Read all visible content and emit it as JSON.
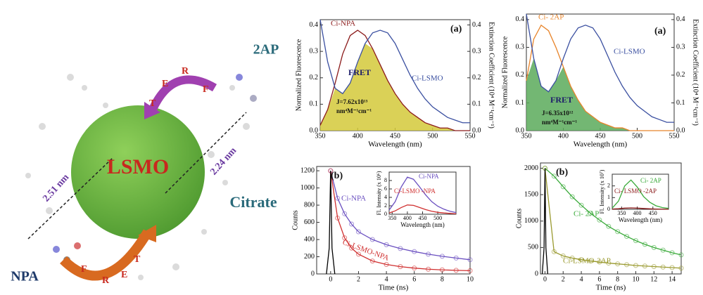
{
  "schematic": {
    "core": "LSMO",
    "ligand": "Citrate",
    "donors": [
      "2AP",
      "NPA"
    ],
    "distances": [
      "2.51 nm",
      "2.24 nm"
    ],
    "fret_top": [
      "T",
      "E",
      "R",
      "F"
    ],
    "fret_bottom": [
      "F",
      "R",
      "E",
      "T"
    ]
  },
  "chart_data": [
    {
      "type": "line",
      "xlabel": "Wavelength (nm)",
      "ylabel": "Normalized Fluorescence",
      "y2label": "Extinction Coefficient (10⁴ M⁻¹cm⁻¹)",
      "x": [
        350,
        360,
        370,
        380,
        390,
        400,
        410,
        420,
        430,
        440,
        450,
        460,
        470,
        480,
        490,
        500,
        510,
        520,
        530,
        540,
        550
      ],
      "series": [
        {
          "name": "Ci-NPA",
          "color": "#8b1a1a",
          "values": [
            0.02,
            0.08,
            0.18,
            0.29,
            0.36,
            0.38,
            0.36,
            0.31,
            0.25,
            0.19,
            0.14,
            0.1,
            0.07,
            0.05,
            0.03,
            0.02,
            0.01,
            0.01,
            0.0,
            0.0,
            0.0
          ]
        },
        {
          "name": "Ci-LSMO",
          "color": "#3a4fa0",
          "axis": "y2",
          "values": [
            0.42,
            0.26,
            0.16,
            0.14,
            0.18,
            0.26,
            0.33,
            0.37,
            0.38,
            0.37,
            0.33,
            0.27,
            0.21,
            0.16,
            0.12,
            0.09,
            0.07,
            0.05,
            0.04,
            0.03,
            0.03
          ]
        }
      ],
      "overlap_color": "#d4c93a",
      "xlim": [
        350,
        550
      ],
      "xticks": [
        350,
        400,
        450,
        500,
        550
      ],
      "ylim": [
        0,
        0.42
      ],
      "yticks": [
        {
          "value": 0,
          "label": "0.0"
        },
        0.1,
        0.2,
        0.3,
        0.4
      ],
      "y2lim": [
        0,
        0.42
      ],
      "y2ticks": [
        {
          "value": 0,
          "label": "0.0"
        },
        0.1,
        0.2,
        0.3,
        0.4
      ],
      "annotations": [
        "(a)",
        "FRET",
        "J=7.62x10¹³",
        "nm⁴M⁻¹cm⁻¹"
      ]
    },
    {
      "type": "line",
      "xlabel": "Wavelength (nm)",
      "ylabel": "Normalized Fluorescence",
      "y2label": "Extinction Coefficient (10⁴ M⁻¹cm⁻¹)",
      "x": [
        350,
        360,
        370,
        380,
        390,
        400,
        410,
        420,
        430,
        440,
        450,
        460,
        470,
        480,
        490,
        500,
        510,
        520,
        530,
        540,
        550
      ],
      "series": [
        {
          "name": "Ci- 2AP",
          "color": "#e8842a",
          "values": [
            0.18,
            0.33,
            0.38,
            0.36,
            0.3,
            0.23,
            0.16,
            0.11,
            0.07,
            0.05,
            0.03,
            0.02,
            0.01,
            0.01,
            0,
            0,
            0,
            0,
            0,
            0,
            0
          ]
        },
        {
          "name": "Ci-LSMO",
          "color": "#3a4fa0",
          "axis": "y2",
          "values": [
            0.42,
            0.26,
            0.16,
            0.14,
            0.18,
            0.26,
            0.33,
            0.37,
            0.38,
            0.37,
            0.33,
            0.27,
            0.21,
            0.16,
            0.12,
            0.09,
            0.07,
            0.05,
            0.04,
            0.03,
            0.03
          ]
        }
      ],
      "overlap_color": "#5aaa5a",
      "xlim": [
        350,
        550
      ],
      "xticks": [
        350,
        400,
        450,
        500,
        550
      ],
      "ylim": [
        0,
        0.42
      ],
      "yticks": [
        {
          "value": 0,
          "label": "0.0"
        },
        0.1,
        0.2,
        0.3,
        0.4
      ],
      "y2lim": [
        0,
        0.42
      ],
      "y2ticks": [
        {
          "value": 0,
          "label": "0.0"
        },
        0.1,
        0.2,
        0.3,
        0.4
      ],
      "annotations": [
        "(a)",
        "FRET",
        "J=6.35x10¹²",
        "nm⁴M⁻¹cm⁻¹"
      ]
    },
    {
      "type": "line",
      "xlabel": "Time (ns)",
      "ylabel": "Counts",
      "series": [
        {
          "name": "Ci-NPA",
          "color": "#6a4fc0",
          "markers": true,
          "x": [
            0,
            0.5,
            1,
            1.5,
            2,
            3,
            4,
            5,
            6,
            7,
            8,
            9,
            10
          ],
          "values": [
            1200,
            880,
            700,
            580,
            490,
            400,
            340,
            295,
            260,
            230,
            205,
            185,
            165
          ]
        },
        {
          "name": "Ci-LSMO-NPA",
          "color": "#d03030",
          "markers": true,
          "x": [
            0,
            0.5,
            1,
            1.5,
            2,
            3,
            4,
            5,
            6,
            7,
            8,
            9,
            10
          ],
          "values": [
            1200,
            650,
            420,
            300,
            230,
            150,
            110,
            85,
            68,
            55,
            47,
            42,
            38
          ]
        },
        {
          "color": "#000000",
          "x": [
            -0.3,
            -0.1,
            0,
            0.1,
            0.3
          ],
          "values": [
            0,
            300,
            1200,
            300,
            0
          ]
        }
      ],
      "xlim": [
        -1,
        10
      ],
      "xticks": [
        0,
        2,
        4,
        6,
        8,
        10
      ],
      "ylim": [
        0,
        1250
      ],
      "yticks": [
        0,
        200,
        400,
        600,
        800,
        1000,
        1200
      ],
      "annotations": [
        "(b)"
      ]
    },
    {
      "type": "line",
      "xlabel": "Wavelength (nm)",
      "ylabel": "Fl. Intensity (x 10⁶)",
      "x": [
        340,
        360,
        380,
        400,
        420,
        440,
        460,
        480,
        500,
        520,
        540,
        560
      ],
      "series": [
        {
          "name": "Ci-NPA",
          "color": "#6a4fc0",
          "values": [
            1,
            3,
            6.5,
            8.8,
            8.3,
            6.5,
            4.6,
            3,
            1.9,
            1.2,
            0.7,
            0.4
          ]
        },
        {
          "name": "Ci-LSMO -NPA",
          "color": "#d03030",
          "values": [
            0.3,
            0.8,
            1.6,
            2.2,
            2.1,
            1.6,
            1.1,
            0.7,
            0.45,
            0.3,
            0.2,
            0.1
          ]
        }
      ],
      "xlim": [
        340,
        560
      ],
      "xticks": [
        350,
        400,
        450,
        500
      ],
      "ylim": [
        0,
        10
      ],
      "yticks": [
        0,
        2,
        4,
        6,
        8
      ]
    },
    {
      "type": "line",
      "xlabel": "Time (ns)",
      "ylabel": "Counts",
      "series": [
        {
          "name": "Ci- 2AP",
          "color": "#3aaa3a",
          "markers": true,
          "x": [
            0,
            1,
            2,
            3,
            4,
            5,
            6,
            7,
            8,
            9,
            10,
            11,
            12,
            13,
            14,
            15
          ],
          "values": [
            2000,
            1850,
            1650,
            1460,
            1300,
            1150,
            1020,
            900,
            800,
            710,
            630,
            560,
            500,
            450,
            400,
            360
          ]
        },
        {
          "name": "Ci-LSMO-2AP",
          "color": "#9a9a30",
          "markers": true,
          "x": [
            0,
            1,
            2,
            3,
            4,
            5,
            6,
            7,
            8,
            9,
            10,
            11,
            12,
            13,
            14,
            15
          ],
          "values": [
            2000,
            420,
            340,
            300,
            270,
            245,
            225,
            205,
            190,
            175,
            160,
            150,
            140,
            130,
            120,
            110
          ]
        },
        {
          "color": "#000000",
          "x": [
            -0.3,
            -0.1,
            0,
            0.1,
            0.3
          ],
          "values": [
            0,
            500,
            2000,
            500,
            0
          ]
        }
      ],
      "xlim": [
        -0.5,
        15
      ],
      "xticks": [
        0,
        2,
        4,
        6,
        8,
        10,
        12,
        14
      ],
      "ylim": [
        0,
        2100
      ],
      "yticks": [
        0,
        500,
        1000,
        1500,
        2000
      ],
      "annotations": [
        "(b)"
      ]
    },
    {
      "type": "line",
      "xlabel": "Wavelength (nm)",
      "ylabel": "Fl. Intensity (x 10⁷)",
      "x": [
        320,
        340,
        360,
        380,
        400,
        420,
        440,
        460,
        480,
        500
      ],
      "series": [
        {
          "name": "Ci- 2AP",
          "color": "#3aaa3a",
          "values": [
            0.1,
            0.7,
            2.0,
            2.5,
            1.9,
            1.1,
            0.6,
            0.3,
            0.15,
            0.08
          ]
        },
        {
          "name": "Ci- LSMO -2AP",
          "color": "#8b1a1a",
          "values": [
            0.02,
            0.05,
            0.1,
            0.12,
            0.1,
            0.07,
            0.04,
            0.02,
            0.01,
            0.01
          ]
        }
      ],
      "xlim": [
        320,
        500
      ],
      "xticks": [
        350,
        400,
        450
      ],
      "ylim": [
        0,
        3
      ],
      "yticks": [
        0,
        1,
        2
      ]
    }
  ]
}
